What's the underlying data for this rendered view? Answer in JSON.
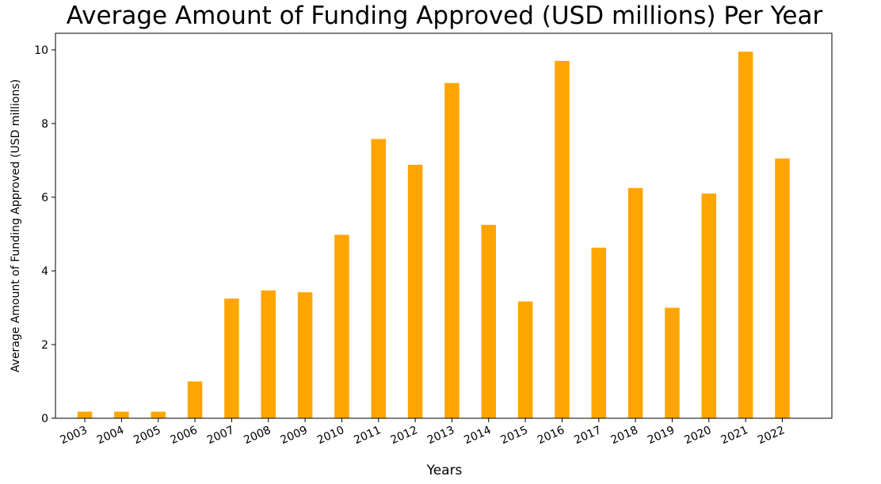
{
  "chart_data": {
    "type": "bar",
    "title": "Average Amount of Funding Approved (USD millions) Per Year",
    "xlabel": "Years",
    "ylabel": "Average Amount of Funding Approved (USD millions)",
    "categories": [
      "2003",
      "2004",
      "2005",
      "2006",
      "2007",
      "2008",
      "2009",
      "2010",
      "2011",
      "2012",
      "2013",
      "2014",
      "2015",
      "2016",
      "2017",
      "2018",
      "2019",
      "2020",
      "2021",
      "2022"
    ],
    "values": [
      0.18,
      0.18,
      0.18,
      1.0,
      3.25,
      3.47,
      3.42,
      4.98,
      7.58,
      6.88,
      9.1,
      5.25,
      3.17,
      9.7,
      4.63,
      6.25,
      3.0,
      6.1,
      9.95,
      7.05
    ],
    "ylim": [
      0,
      10.45
    ],
    "yticks": [
      0,
      2,
      4,
      6,
      8,
      10
    ],
    "bar_color": "#ffa500",
    "grid": false,
    "legend": "none"
  }
}
